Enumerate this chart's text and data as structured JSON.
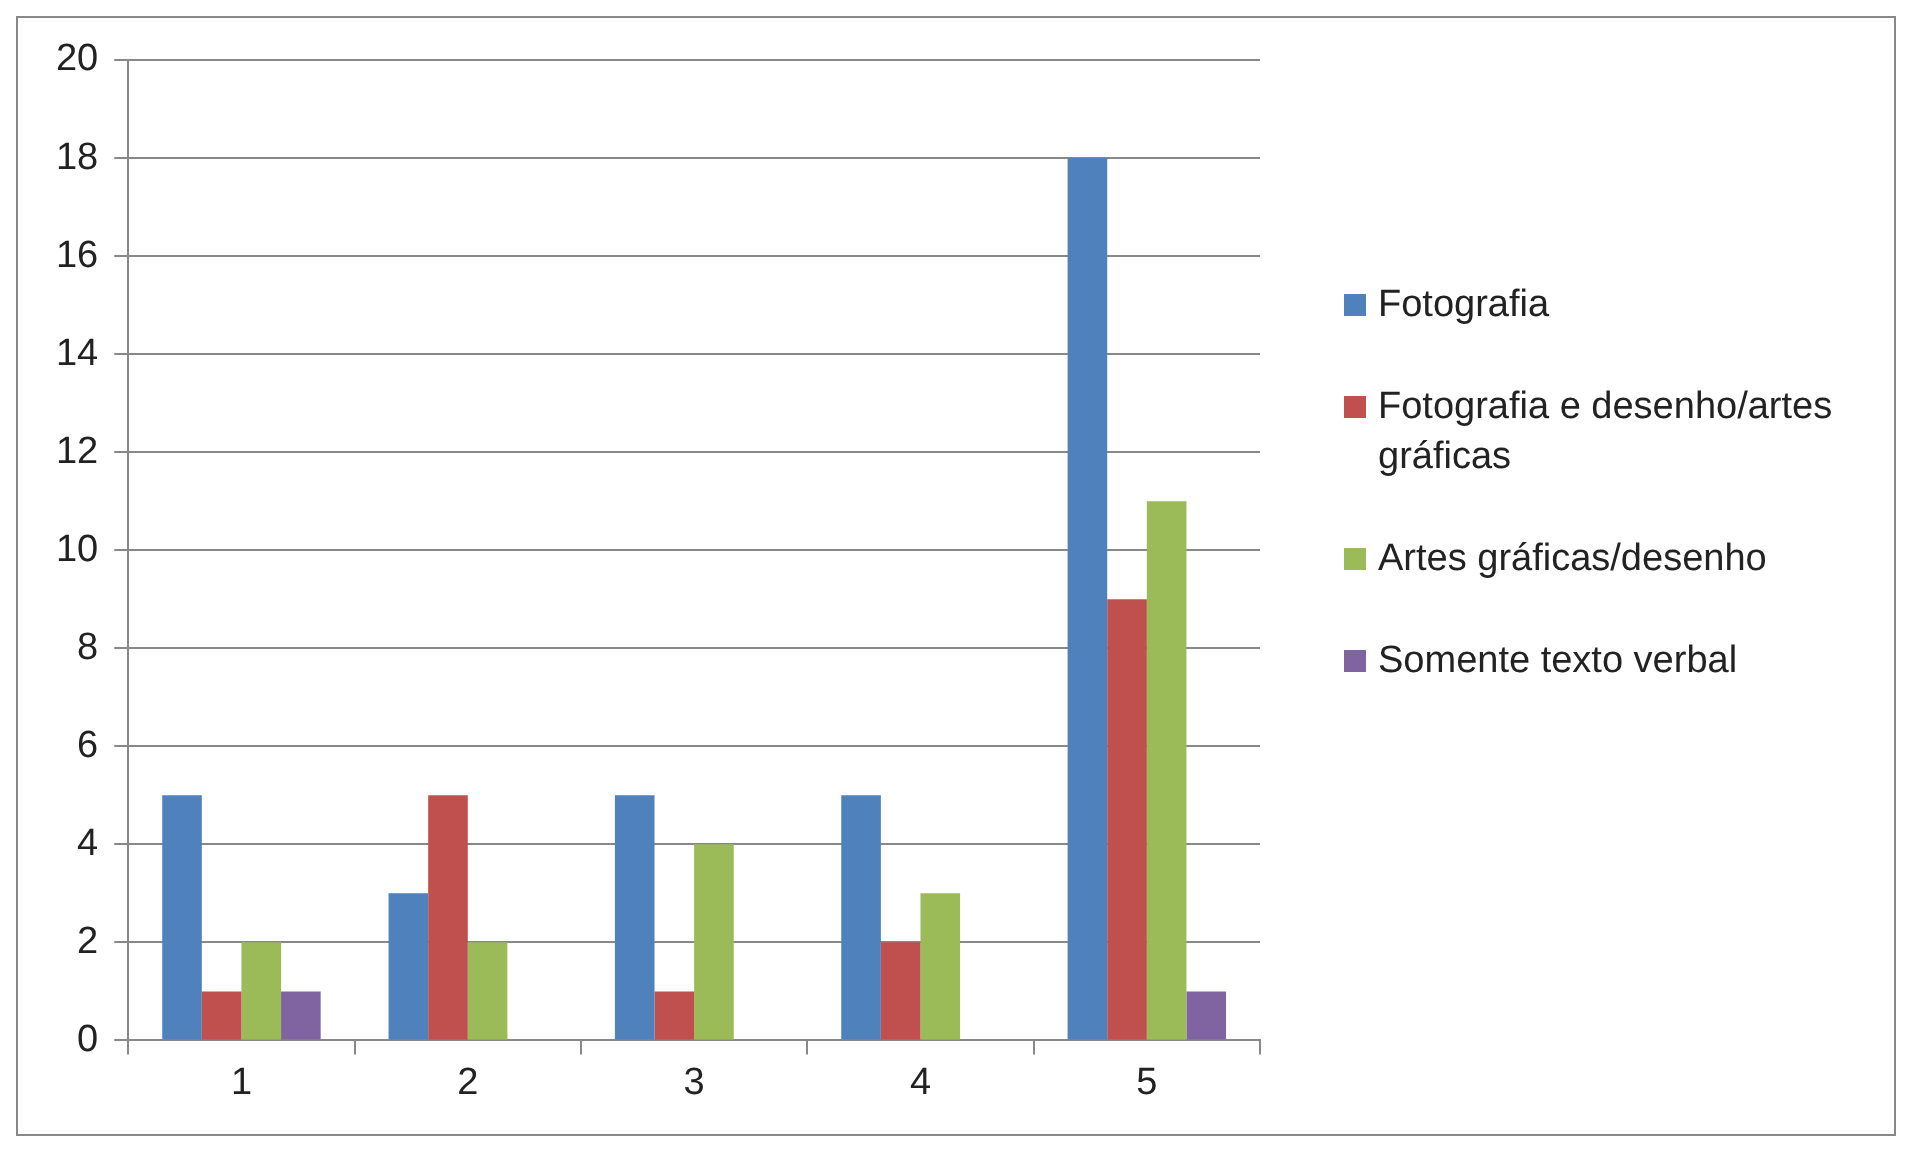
{
  "chart_data": {
    "type": "bar",
    "categories": [
      "1",
      "2",
      "3",
      "4",
      "5"
    ],
    "series": [
      {
        "name": "Fotografia",
        "color": "#4f81bd",
        "values": [
          5,
          3,
          5,
          5,
          18
        ]
      },
      {
        "name": "Fotografia e desenho/artes gráficas",
        "color": "#c0504d",
        "values": [
          1,
          5,
          1,
          2,
          9
        ]
      },
      {
        "name": "Artes gráficas/desenho",
        "color": "#9bbb59",
        "values": [
          2,
          2,
          4,
          3,
          11
        ]
      },
      {
        "name": "Somente texto verbal",
        "color": "#8064a2",
        "values": [
          1,
          0,
          0,
          0,
          1
        ]
      }
    ],
    "ylim": [
      0,
      20
    ],
    "yticks": [
      0,
      2,
      4,
      6,
      8,
      10,
      12,
      14,
      16,
      18,
      20
    ],
    "grid": "y",
    "legend": "right"
  }
}
